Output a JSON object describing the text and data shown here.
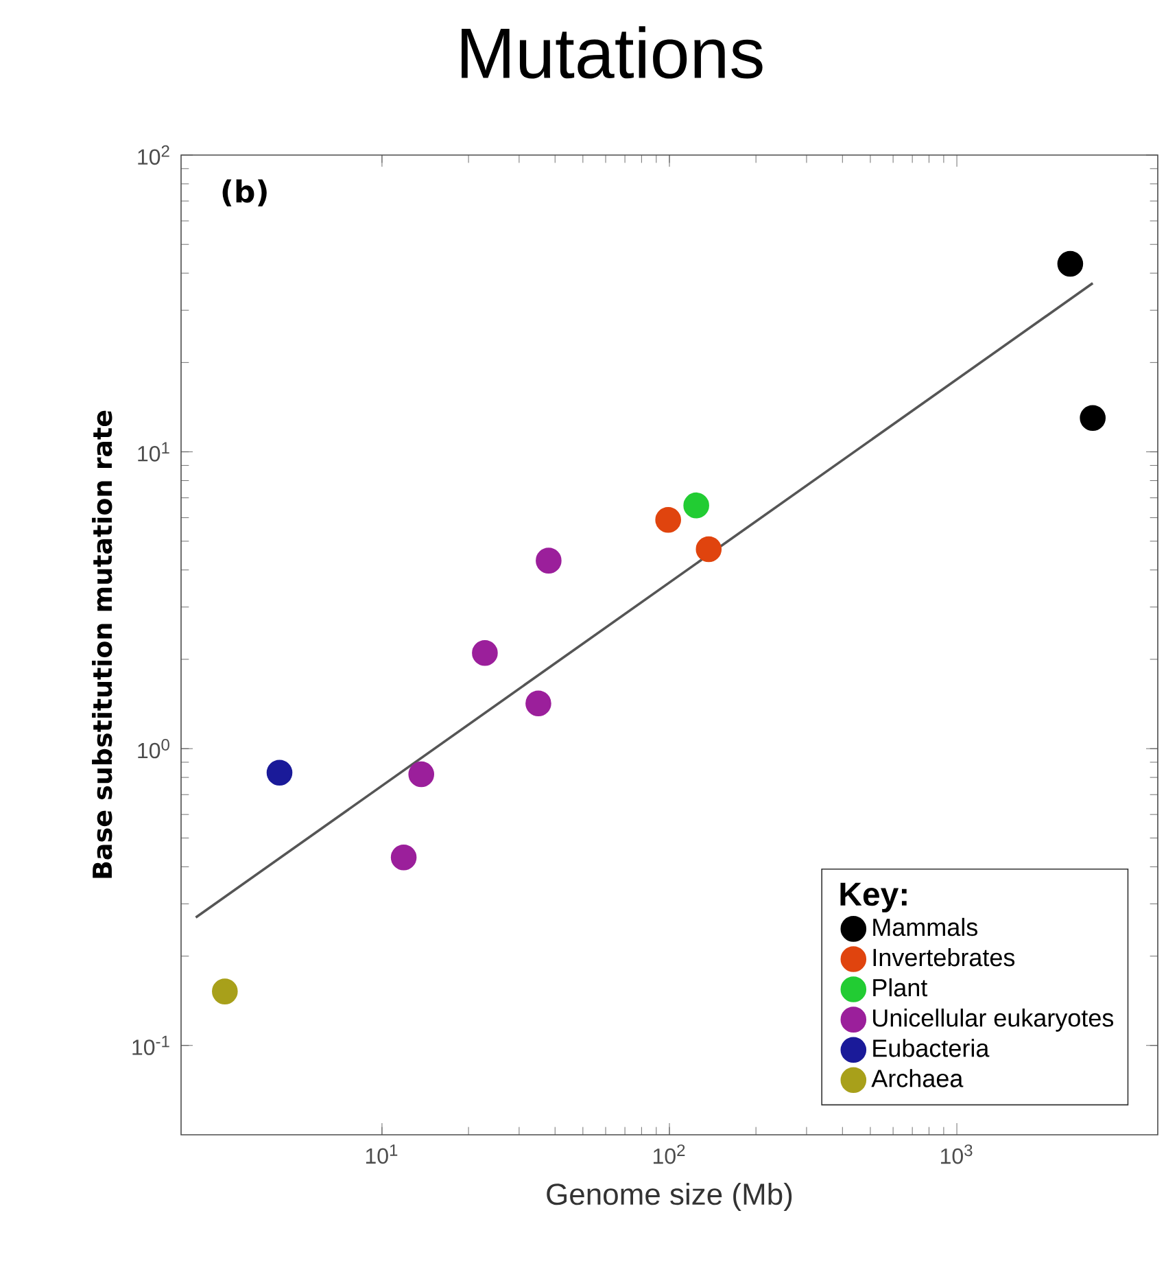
{
  "chart_data": {
    "type": "scatter",
    "title": "Mutations",
    "xlabel": "Genome size (Mb)",
    "ylabel": "Base substitution mutation rate",
    "legend_title": "Key:",
    "annotations": [
      "(b)"
    ],
    "log": "xy",
    "grid": false,
    "legend": "bottom right",
    "xlim": [
      2,
      5000
    ],
    "ylim": [
      0.05,
      100
    ],
    "xticks": [
      {
        "value": 10,
        "label": "10$^{1}$"
      },
      {
        "value": 100,
        "label": "10$^{2}$"
      },
      {
        "value": 1000,
        "label": "10$^{3}$"
      }
    ],
    "yticks": [
      {
        "value": 0.1,
        "label": "10$^{-1}$"
      },
      {
        "value": 1,
        "label": "10$^{0}$"
      },
      {
        "value": 10,
        "label": "10$^{1}$"
      },
      {
        "value": 100,
        "label": "10$^{2}$"
      }
    ],
    "series": [
      {
        "name": "Mammals",
        "marker": "circle",
        "color": "#000000",
        "x": [
          2480,
          2970
        ],
        "values": [
          43,
          13
        ]
      },
      {
        "name": "Invertebrates",
        "marker": "circle",
        "color": "#e0440e",
        "x": [
          99,
          137
        ],
        "values": [
          5.9,
          4.7
        ]
      },
      {
        "name": "Plant",
        "marker": "circle",
        "color": "#22cc33",
        "x": [
          124
        ],
        "values": [
          6.6
        ]
      },
      {
        "name": "Unicellular eukaryotes",
        "marker": "circle",
        "color": "#9b1f9b",
        "x": [
          38,
          22.8,
          35,
          13.7,
          11.9
        ],
        "values": [
          4.3,
          2.1,
          1.42,
          0.82,
          0.43
        ]
      },
      {
        "name": "Eubacteria",
        "marker": "circle",
        "color": "#1a1a99",
        "x": [
          4.4
        ],
        "values": [
          0.83
        ]
      },
      {
        "name": "Archaea",
        "marker": "circle",
        "color": "#a8a01a",
        "x": [
          2.84
        ],
        "values": [
          0.152
        ]
      },
      {
        "type": "line",
        "marker": "none",
        "color": "#555555",
        "line_style": "solid",
        "x": [
          2.25,
          2970
        ],
        "values": [
          0.27,
          37
        ]
      }
    ]
  }
}
